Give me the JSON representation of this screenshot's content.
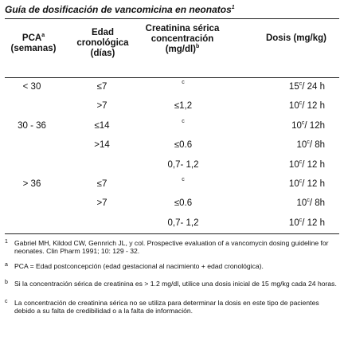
{
  "title": {
    "text": "Guía de dosificación de vancomicina en neonatos",
    "note": "1"
  },
  "table": {
    "headers": [
      {
        "text": "PCA",
        "note": "a",
        "sub": "(semanas)"
      },
      {
        "text": "Edad cronológica (días)"
      },
      {
        "text": "Creatinina sérica concentración (mg/dl)",
        "note": "b"
      },
      {
        "text": "Dosis (mg/kg)"
      }
    ],
    "rows": [
      [
        "< 30",
        "≤7",
        "c",
        {
          "amount": "15",
          "note": "c",
          "interval": "/ 24 h"
        }
      ],
      [
        null,
        ">7",
        "≤1,2",
        {
          "amount": "10",
          "note": "c",
          "interval": "/ 12 h"
        }
      ],
      [
        "30 - 36",
        "≤14",
        "c",
        {
          "amount": "10",
          "note": "c",
          "interval": "/ 12h"
        }
      ],
      [
        null,
        ">14",
        "≤0.6",
        {
          "amount": "10",
          "note": "c",
          "interval": "/ 8h"
        }
      ],
      [
        null,
        null,
        "0,7- 1,2",
        {
          "amount": "10",
          "note": "c",
          "interval": "/ 12 h"
        }
      ],
      [
        "> 36",
        "≤7",
        "c",
        {
          "amount": "10",
          "note": "c",
          "interval": "/ 12 h"
        }
      ],
      [
        null,
        ">7",
        "≤0.6",
        {
          "amount": "10",
          "note": "c",
          "interval": "/ 8h"
        }
      ],
      [
        null,
        null,
        "0,7- 1,2",
        {
          "amount": "10",
          "note": "c",
          "interval": "/ 12 h"
        }
      ]
    ]
  },
  "footnotes": [
    {
      "mark": "1",
      "text": "Gabriel MH, Kildod CW, Gennrich JL, y col. Prospective evaluation of a vancomycin dosing guideline for neonates. Clin Pharm 1991; 10: 129 - 32."
    },
    {
      "mark": "a",
      "text": "PCA = Edad postconcepción (edad gestacional al nacimiento + edad cronológica)."
    },
    {
      "mark": "b",
      "text": "Si la concentración sérica de creatinina es > 1.2 mg/dl, utilice una dosis inicial de 15 mg/kg cada 24 horas."
    },
    {
      "mark": "c",
      "text": "La concentración de creatinina sérica no se utiliza para determinar la dosis en este tipo de pacientes debido a su falta de credibilidad o a la falta de información."
    }
  ]
}
